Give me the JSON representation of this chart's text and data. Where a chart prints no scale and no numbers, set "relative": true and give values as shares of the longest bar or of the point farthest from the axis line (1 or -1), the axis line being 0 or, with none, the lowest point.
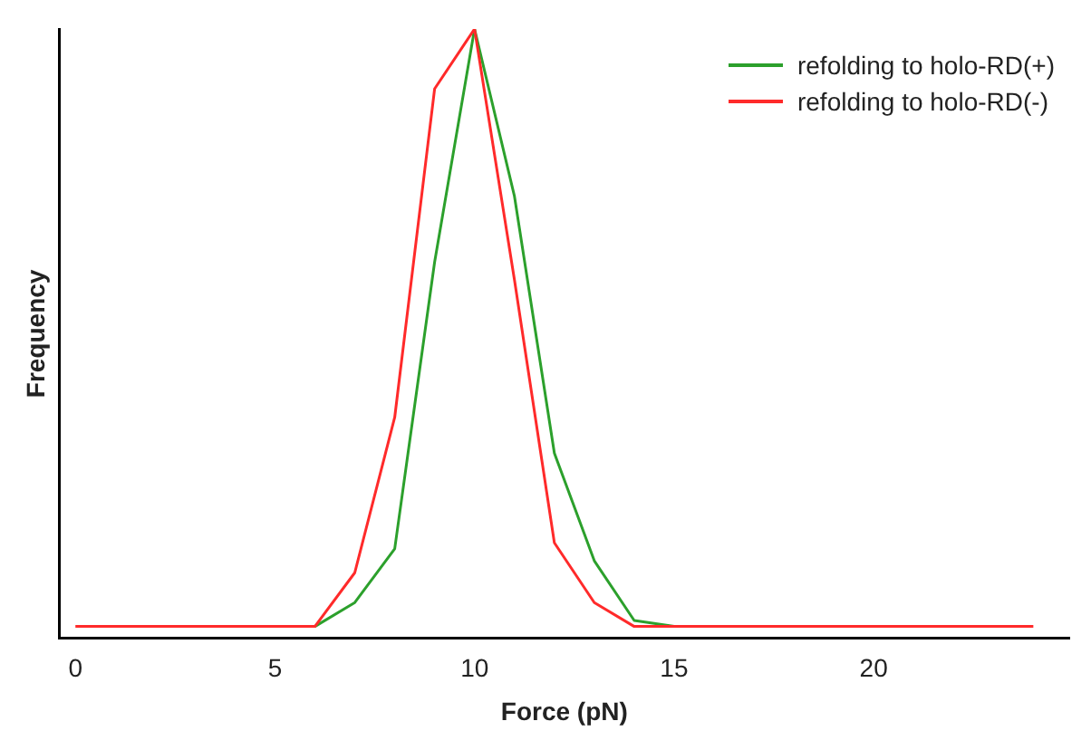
{
  "chart_data": {
    "type": "line",
    "xlabel": "Force (pN)",
    "ylabel": "Frequency",
    "relative": true,
    "x": [
      0,
      1,
      2,
      3,
      4,
      5,
      6,
      7,
      8,
      9,
      10,
      11,
      12,
      13,
      14,
      15,
      16,
      17,
      18,
      19,
      20,
      21,
      22,
      23,
      24
    ],
    "xlim": [
      -0.4,
      24.9
    ],
    "xticks": [
      0,
      5,
      10,
      15,
      20
    ],
    "series": [
      {
        "name": "refolding to holo-RD(+)",
        "color": "#2ca02c",
        "values": [
          null,
          null,
          null,
          null,
          null,
          null,
          0,
          0.04,
          0.13,
          0.61,
          1,
          0.72,
          0.29,
          0.11,
          0.01,
          0,
          null,
          null,
          null,
          null,
          null,
          null,
          null,
          null,
          null
        ]
      },
      {
        "name": "refolding to holo-RD(-)",
        "color": "#ff2a2a",
        "values": [
          0,
          0,
          0,
          0,
          0,
          0,
          0,
          0.09,
          0.35,
          0.9,
          1,
          0.58,
          0.14,
          0.04,
          0,
          0,
          0,
          0,
          0,
          0,
          0,
          0,
          0,
          0,
          0
        ]
      }
    ],
    "grid": false,
    "legend": "top right",
    "marker": "none",
    "line_style": "solid"
  }
}
